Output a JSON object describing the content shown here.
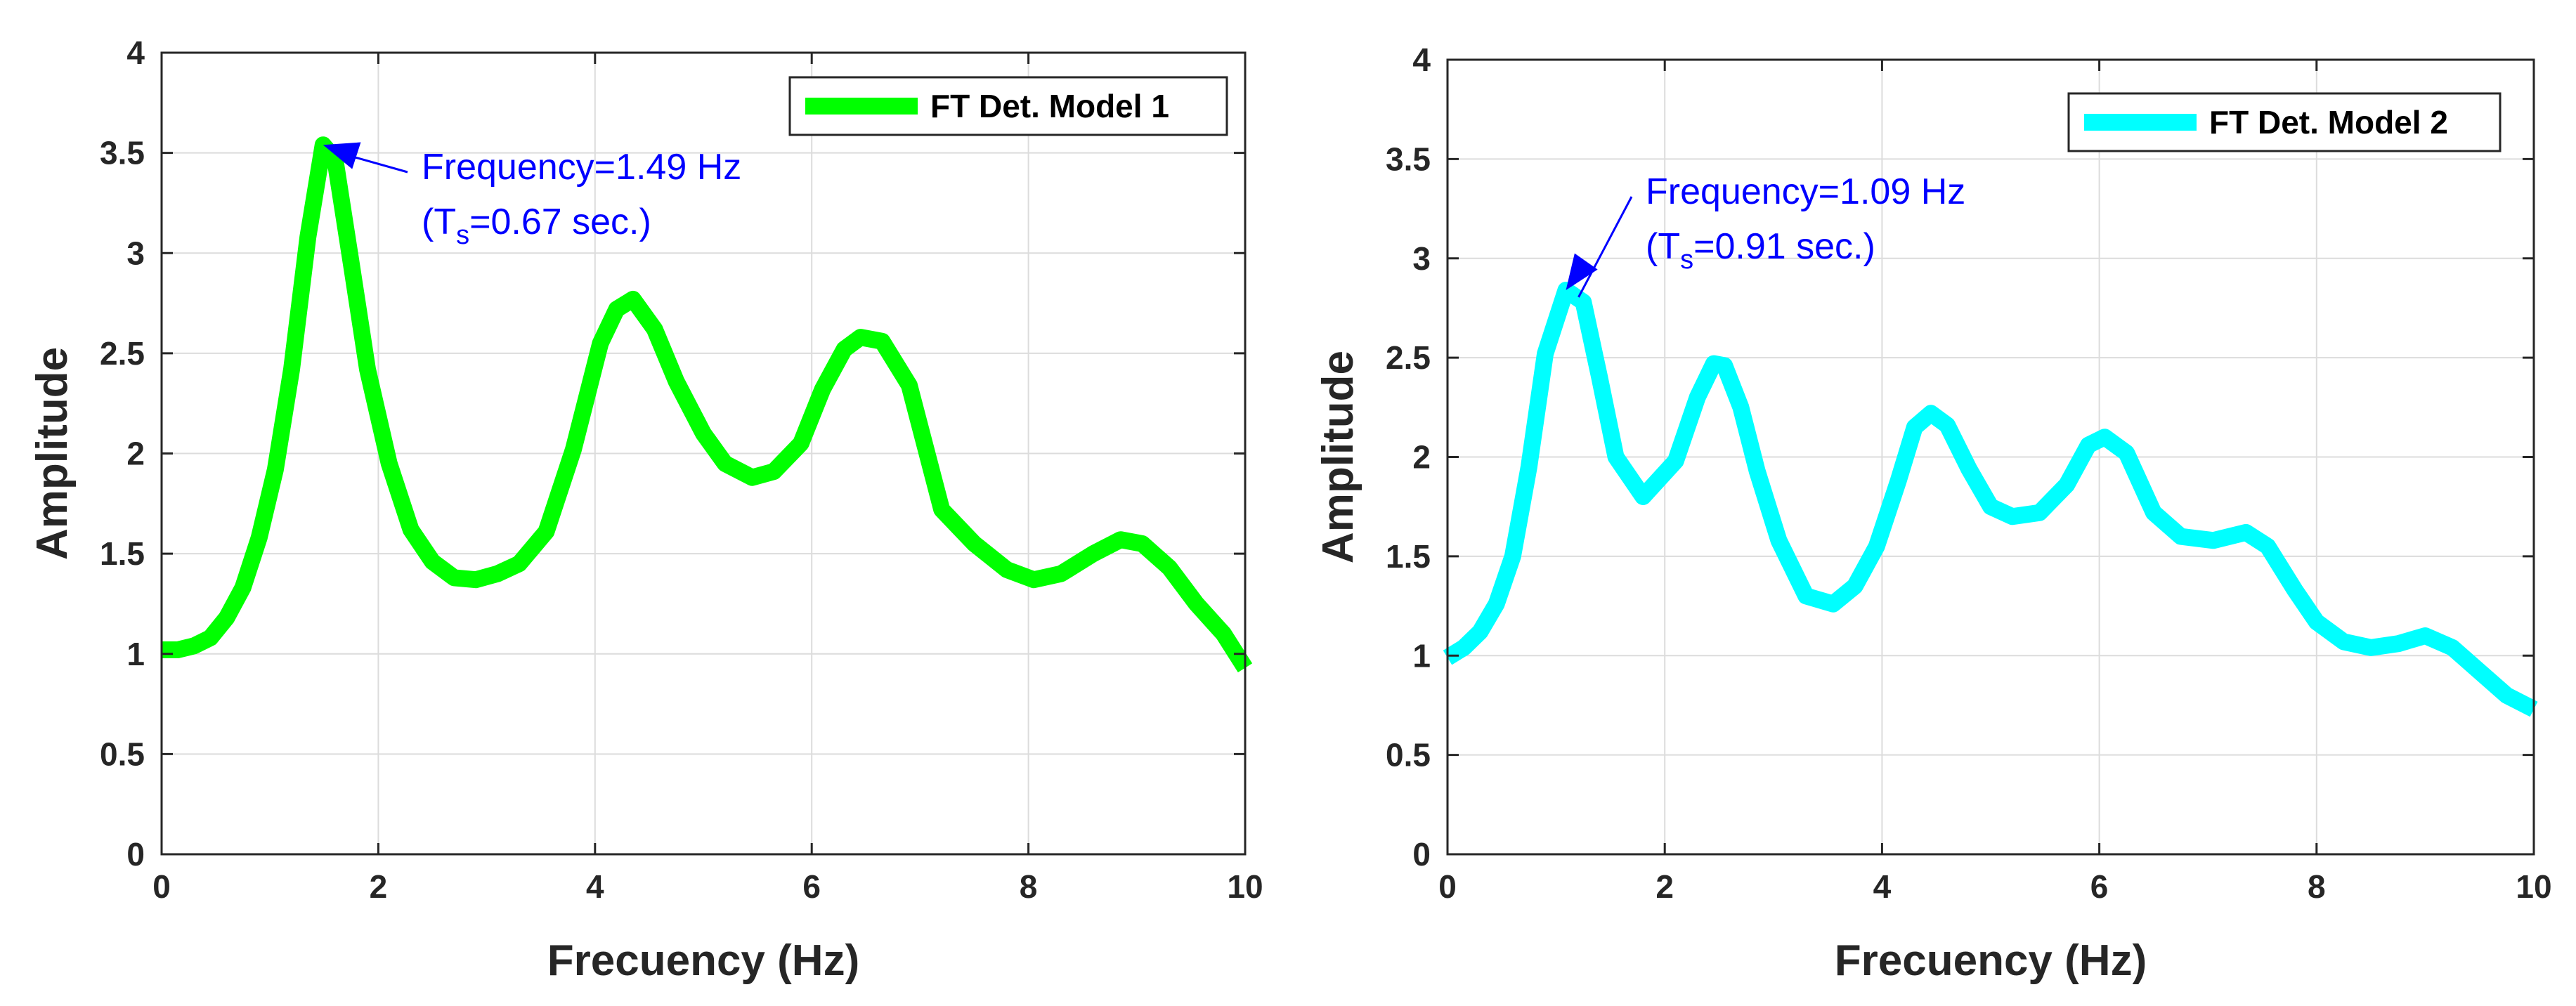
{
  "chart_data": [
    {
      "type": "line",
      "title": "",
      "xlabel": "Frecuency (Hz)",
      "ylabel": "Amplitude",
      "xlim": [
        0,
        10
      ],
      "ylim": [
        0,
        4
      ],
      "xticks": [
        "0",
        "2",
        "4",
        "6",
        "8",
        "10"
      ],
      "yticks": [
        "0",
        "0.5",
        "1",
        "1.5",
        "2",
        "2.5",
        "3",
        "3.5",
        "4"
      ],
      "grid": true,
      "legend_position": "top-right",
      "series": [
        {
          "name": "FT Det. Model 1",
          "color": "#00ff00",
          "x": [
            0,
            0.15,
            0.3,
            0.45,
            0.6,
            0.75,
            0.9,
            1.05,
            1.2,
            1.35,
            1.49,
            1.6,
            1.75,
            1.9,
            2.1,
            2.3,
            2.5,
            2.7,
            2.9,
            3.1,
            3.3,
            3.55,
            3.8,
            4.05,
            4.2,
            4.35,
            4.55,
            4.75,
            5.0,
            5.2,
            5.45,
            5.65,
            5.9,
            6.1,
            6.3,
            6.45,
            6.65,
            6.9,
            7.2,
            7.5,
            7.8,
            8.05,
            8.3,
            8.6,
            8.85,
            9.05,
            9.3,
            9.55,
            9.8,
            10.0
          ],
          "y": [
            1.02,
            1.02,
            1.04,
            1.08,
            1.18,
            1.33,
            1.58,
            1.92,
            2.42,
            3.08,
            3.54,
            3.47,
            2.95,
            2.42,
            1.95,
            1.62,
            1.46,
            1.38,
            1.37,
            1.4,
            1.45,
            1.61,
            2.02,
            2.55,
            2.72,
            2.77,
            2.62,
            2.36,
            2.1,
            1.95,
            1.88,
            1.91,
            2.05,
            2.32,
            2.52,
            2.58,
            2.56,
            2.34,
            1.72,
            1.55,
            1.42,
            1.37,
            1.4,
            1.5,
            1.57,
            1.55,
            1.43,
            1.25,
            1.1,
            0.93
          ]
        }
      ],
      "annotation": {
        "x": 1.49,
        "y": 3.54,
        "line1": "Frequency=1.49 Hz",
        "line2_prefix": "(T",
        "line2_sub": "s",
        "line2_suffix": "=0.67 sec.)"
      }
    },
    {
      "type": "line",
      "title": "",
      "xlabel": "Frecuency (Hz)",
      "ylabel": "Amplitude",
      "xlim": [
        0,
        10
      ],
      "ylim": [
        0,
        4
      ],
      "xticks": [
        "0",
        "2",
        "4",
        "6",
        "8",
        "10"
      ],
      "yticks": [
        "0",
        "0.5",
        "1",
        "1.5",
        "2",
        "2.5",
        "3",
        "3.5",
        "4"
      ],
      "grid": true,
      "legend_position": "top-right",
      "series": [
        {
          "name": "FT Det. Model 2",
          "color": "#00ffff",
          "x": [
            0,
            0.15,
            0.3,
            0.45,
            0.6,
            0.75,
            0.9,
            1.09,
            1.25,
            1.4,
            1.55,
            1.8,
            2.1,
            2.3,
            2.45,
            2.55,
            2.7,
            2.85,
            3.05,
            3.3,
            3.55,
            3.75,
            3.95,
            4.15,
            4.3,
            4.45,
            4.6,
            4.8,
            5.0,
            5.2,
            5.45,
            5.7,
            5.9,
            6.05,
            6.25,
            6.5,
            6.75,
            7.05,
            7.35,
            7.55,
            7.8,
            8.0,
            8.25,
            8.5,
            8.75,
            9.0,
            9.25,
            9.5,
            9.75,
            10.0
          ],
          "y": [
            0.99,
            1.04,
            1.12,
            1.26,
            1.5,
            1.95,
            2.52,
            2.84,
            2.78,
            2.4,
            2.0,
            1.8,
            1.98,
            2.3,
            2.47,
            2.46,
            2.25,
            1.93,
            1.58,
            1.3,
            1.26,
            1.35,
            1.55,
            1.88,
            2.15,
            2.22,
            2.16,
            1.94,
            1.75,
            1.7,
            1.72,
            1.86,
            2.06,
            2.1,
            2.02,
            1.72,
            1.6,
            1.58,
            1.62,
            1.55,
            1.33,
            1.17,
            1.07,
            1.04,
            1.06,
            1.1,
            1.04,
            0.92,
            0.8,
            0.73
          ]
        }
      ],
      "annotation": {
        "x": 1.09,
        "y": 2.84,
        "line1": "Frequency=1.09 Hz",
        "line2_prefix": "(T",
        "line2_sub": "s",
        "line2_suffix": "=0.91 sec.)"
      }
    }
  ]
}
